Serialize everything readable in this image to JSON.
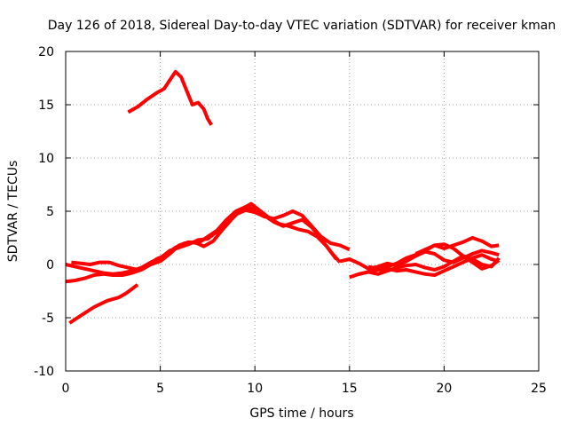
{
  "chart_data": {
    "type": "line",
    "title": "Day 126 of 2018, Sidereal Day-to-day VTEC variation (SDTVAR) for receiver kman",
    "xlabel": "GPS time / hours",
    "ylabel": "SDTVAR / TECUs",
    "xlim": [
      0,
      25
    ],
    "ylim": [
      -10,
      20
    ],
    "xticks": [
      0,
      5,
      10,
      15,
      20,
      25
    ],
    "yticks": [
      -10,
      -5,
      0,
      5,
      10,
      15,
      20
    ],
    "grid": true,
    "line_color": "#ff0000",
    "series": [
      {
        "name": "trace-1",
        "x": [
          3.3,
          3.8,
          4.3,
          4.8,
          5.2,
          5.5,
          5.8,
          6.1,
          6.4,
          6.7,
          7.0,
          7.3,
          7.5,
          7.7
        ],
        "y": [
          14.3,
          14.8,
          15.5,
          16.1,
          16.5,
          17.3,
          18.1,
          17.6,
          16.3,
          15.0,
          15.2,
          14.6,
          13.7,
          13.1
        ]
      },
      {
        "name": "trace-2",
        "x": [
          0.2,
          0.8,
          1.5,
          2.2,
          2.8,
          3.2,
          3.5,
          3.8
        ],
        "y": [
          -5.5,
          -4.8,
          -4.0,
          -3.4,
          -3.1,
          -2.7,
          -2.3,
          -1.9
        ]
      },
      {
        "name": "trace-3",
        "x": [
          0.0,
          0.5,
          1.0,
          1.5,
          2.0,
          2.5,
          3.0,
          3.5,
          4.0,
          4.5,
          5.0,
          5.5,
          6.0,
          6.5,
          7.0,
          7.5,
          8.0,
          8.5,
          9.0,
          9.5,
          10.0,
          10.5,
          11.0,
          11.5,
          12.0,
          12.5,
          13.0,
          13.5,
          14.0,
          14.5
        ],
        "y": [
          -1.6,
          -1.5,
          -1.3,
          -1.0,
          -0.9,
          -1.0,
          -1.0,
          -0.8,
          -0.5,
          0.0,
          0.3,
          1.0,
          1.8,
          2.1,
          2.0,
          2.6,
          3.2,
          4.2,
          5.0,
          5.4,
          5.2,
          4.6,
          4.0,
          3.6,
          3.9,
          4.2,
          3.5,
          2.4,
          1.2,
          0.2
        ]
      },
      {
        "name": "trace-4",
        "x": [
          0.0,
          0.5,
          1.0,
          1.5,
          2.0,
          2.5,
          3.0,
          3.5,
          4.0,
          4.5,
          5.0,
          5.5,
          6.0,
          6.5,
          7.0,
          7.5,
          8.0,
          8.5,
          9.0,
          9.5,
          10.0,
          10.5,
          11.0,
          11.5,
          12.0,
          12.5,
          13.0,
          13.5,
          14.0,
          14.5,
          15.0
        ],
        "y": [
          0.0,
          -0.2,
          -0.4,
          -0.6,
          -0.8,
          -0.9,
          -0.8,
          -0.6,
          -0.3,
          0.2,
          0.6,
          1.3,
          1.6,
          1.9,
          2.3,
          2.4,
          3.1,
          4.0,
          4.7,
          5.1,
          4.9,
          4.5,
          4.3,
          4.6,
          5.0,
          4.6,
          3.6,
          2.6,
          2.0,
          1.8,
          1.4
        ]
      },
      {
        "name": "trace-5",
        "x": [
          0.3,
          0.8,
          1.3,
          1.8,
          2.3,
          2.8,
          3.3,
          3.8,
          4.3,
          4.8,
          5.3,
          5.8,
          6.3,
          6.8,
          7.3,
          7.8,
          8.3,
          8.8,
          9.3,
          9.8,
          10.3,
          10.8,
          11.3,
          11.8,
          12.3,
          12.8,
          13.3,
          13.8,
          14.3
        ],
        "y": [
          0.2,
          0.1,
          0.0,
          0.2,
          0.2,
          -0.1,
          -0.3,
          -0.5,
          -0.1,
          0.5,
          0.9,
          1.6,
          2.0,
          2.1,
          1.7,
          2.2,
          3.3,
          4.3,
          5.2,
          5.7,
          5.0,
          4.3,
          3.8,
          3.6,
          3.3,
          3.1,
          2.6,
          1.7,
          0.5
        ]
      },
      {
        "name": "trace-6",
        "x": [
          15.0,
          15.5,
          16.0,
          16.5,
          17.0,
          17.5,
          18.0,
          18.5,
          19.0,
          19.5,
          20.0,
          20.5,
          21.0,
          21.5,
          22.0,
          22.5,
          22.9
        ],
        "y": [
          -1.2,
          -0.9,
          -0.7,
          -0.5,
          -0.4,
          -0.6,
          -0.5,
          -0.7,
          -0.9,
          -1.0,
          -0.6,
          -0.2,
          0.2,
          0.6,
          0.9,
          0.5,
          0.3
        ]
      },
      {
        "name": "trace-7",
        "x": [
          14.5,
          15.0,
          15.5,
          16.0,
          16.5,
          17.0,
          17.5,
          18.0,
          18.5,
          19.0,
          19.5,
          20.0,
          20.5,
          21.0,
          21.5,
          22.0,
          22.5,
          22.9
        ],
        "y": [
          0.3,
          0.5,
          0.1,
          -0.4,
          -0.2,
          0.1,
          -0.1,
          0.3,
          0.8,
          1.2,
          1.0,
          0.4,
          0.2,
          0.6,
          1.0,
          1.3,
          1.1,
          0.9
        ]
      },
      {
        "name": "trace-8",
        "x": [
          16.0,
          16.5,
          17.0,
          17.5,
          18.0,
          18.5,
          19.0,
          19.5,
          20.0,
          20.5,
          21.0,
          21.5,
          22.0,
          22.5,
          22.9
        ],
        "y": [
          -0.2,
          -0.4,
          -0.2,
          0.1,
          0.6,
          0.9,
          1.3,
          1.8,
          1.5,
          1.8,
          2.1,
          2.5,
          2.2,
          1.7,
          1.8
        ]
      },
      {
        "name": "trace-9",
        "x": [
          15.5,
          16.0,
          16.5,
          17.0,
          17.5,
          18.0,
          18.5,
          19.0,
          19.5,
          20.0,
          20.5,
          21.0,
          21.5,
          22.0,
          22.5,
          22.9
        ],
        "y": [
          -0.9,
          -0.7,
          -0.9,
          -0.6,
          -0.3,
          -0.1,
          0.0,
          -0.3,
          -0.5,
          -0.2,
          0.3,
          0.8,
          0.5,
          0.0,
          -0.2,
          0.6
        ]
      },
      {
        "name": "trace-10",
        "x": [
          18.5,
          19.0,
          19.5,
          20.0,
          20.5,
          21.0,
          21.5,
          22.0,
          22.5,
          22.9
        ],
        "y": [
          1.0,
          1.4,
          1.8,
          1.9,
          1.5,
          0.8,
          0.2,
          -0.4,
          -0.1,
          0.4
        ]
      }
    ]
  }
}
